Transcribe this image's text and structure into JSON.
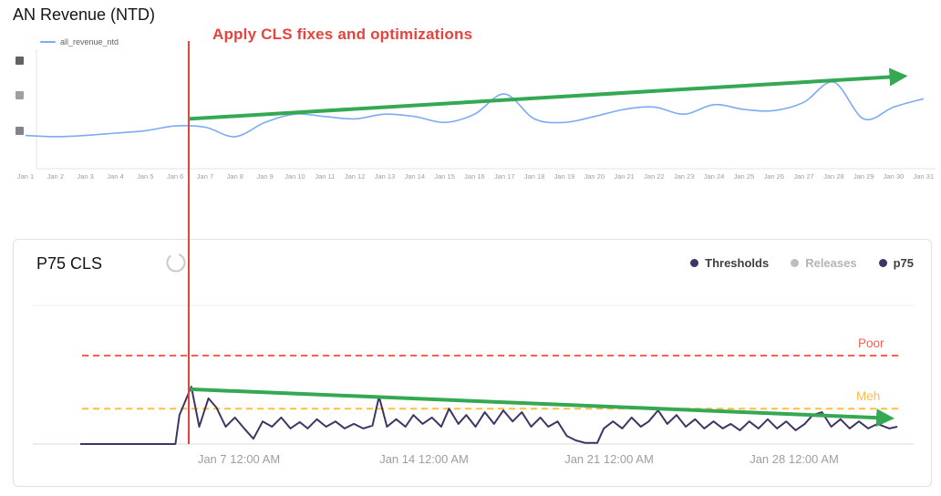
{
  "chart_data": [
    {
      "type": "line",
      "title": "AN Revenue (NTD)",
      "annotation": "Apply CLS fixes and optimizations",
      "x_tick_labels": [
        "Jan 1",
        "Jan 2",
        "Jan 3",
        "Jan 4",
        "Jan 5",
        "Jan 6",
        "Jan 7",
        "Jan 8",
        "Jan 9",
        "Jan 10",
        "Jan 11",
        "Jan 12",
        "Jan 13",
        "Jan 14",
        "Jan 15",
        "Jan 16",
        "Jan 17",
        "Jan 18",
        "Jan 19",
        "Jan 20",
        "Jan 21",
        "Jan 22",
        "Jan 23",
        "Jan 24",
        "Jan 25",
        "Jan 26",
        "Jan 27",
        "Jan 28",
        "Jan 29",
        "Jan 30",
        "Jan 31"
      ],
      "y_tick_labels_redacted": true,
      "ylim": [
        0,
        100
      ],
      "series": [
        {
          "name": "all_revenue_ntd",
          "color": "#7baaf7",
          "values": [
            28,
            27,
            28,
            30,
            32,
            36,
            35,
            27,
            39,
            46,
            44,
            42,
            46,
            44,
            39,
            46,
            63,
            42,
            39,
            44,
            50,
            52,
            46,
            54,
            50,
            49,
            56,
            73,
            42,
            52,
            59
          ]
        }
      ],
      "event_line": {
        "day": 6.45,
        "color": "#e2443c"
      },
      "trend_arrow": {
        "from": {
          "day": 6.45,
          "value": 42
        },
        "to": {
          "day": 30.3,
          "value": 78
        },
        "color": "#34a853"
      }
    },
    {
      "type": "line",
      "title": "P75 CLS",
      "legend": [
        {
          "label": "Thresholds",
          "color": "#3d3663",
          "disabled": false
        },
        {
          "label": "Releases",
          "color": "#bdbdbd",
          "disabled": true
        },
        {
          "label": "p75",
          "color": "#3d3663",
          "disabled": false
        }
      ],
      "thresholds": [
        {
          "label": "Poor",
          "value": 0.25,
          "color": "#f86055"
        },
        {
          "label": "Meh",
          "value": 0.1,
          "color": "#fdbd4a"
        }
      ],
      "x_tick_labels": [
        "Jan 7 12:00 AM",
        "Jan 14 12:00 AM",
        "Jan 21 12:00 AM",
        "Jan 28 12:00 AM"
      ],
      "ylim": [
        0,
        0.45
      ],
      "series": [
        {
          "name": "p75",
          "color": "#3d3663",
          "points": [
            [
              1,
              0
            ],
            [
              2,
              0
            ],
            [
              3,
              0
            ],
            [
              4,
              0
            ],
            [
              4.6,
              0
            ],
            [
              4.75,
              0.082
            ],
            [
              5.2,
              0.162
            ],
            [
              5.5,
              0.049
            ],
            [
              5.85,
              0.129
            ],
            [
              6.15,
              0.103
            ],
            [
              6.5,
              0.049
            ],
            [
              6.85,
              0.075
            ],
            [
              7.2,
              0.044
            ],
            [
              7.55,
              0.015
            ],
            [
              7.9,
              0.064
            ],
            [
              8.25,
              0.049
            ],
            [
              8.6,
              0.075
            ],
            [
              8.95,
              0.044
            ],
            [
              9.3,
              0.062
            ],
            [
              9.6,
              0.044
            ],
            [
              9.95,
              0.07
            ],
            [
              10.3,
              0.049
            ],
            [
              10.65,
              0.064
            ],
            [
              11,
              0.044
            ],
            [
              11.35,
              0.057
            ],
            [
              11.7,
              0.044
            ],
            [
              12.05,
              0.052
            ],
            [
              12.3,
              0.134
            ],
            [
              12.6,
              0.049
            ],
            [
              12.95,
              0.07
            ],
            [
              13.3,
              0.049
            ],
            [
              13.6,
              0.082
            ],
            [
              13.95,
              0.057
            ],
            [
              14.3,
              0.075
            ],
            [
              14.65,
              0.049
            ],
            [
              14.95,
              0.1
            ],
            [
              15.3,
              0.057
            ],
            [
              15.6,
              0.082
            ],
            [
              15.95,
              0.049
            ],
            [
              16.3,
              0.09
            ],
            [
              16.65,
              0.057
            ],
            [
              17,
              0.095
            ],
            [
              17.35,
              0.064
            ],
            [
              17.7,
              0.09
            ],
            [
              18.05,
              0.049
            ],
            [
              18.4,
              0.075
            ],
            [
              18.7,
              0.049
            ],
            [
              19.05,
              0.064
            ],
            [
              19.4,
              0.023
            ],
            [
              19.75,
              0.01
            ],
            [
              20.1,
              0.003
            ],
            [
              20.55,
              0.003
            ],
            [
              20.8,
              0.044
            ],
            [
              21.15,
              0.064
            ],
            [
              21.5,
              0.044
            ],
            [
              21.85,
              0.075
            ],
            [
              22.2,
              0.049
            ],
            [
              22.5,
              0.064
            ],
            [
              22.85,
              0.095
            ],
            [
              23.2,
              0.057
            ],
            [
              23.55,
              0.082
            ],
            [
              23.9,
              0.049
            ],
            [
              24.25,
              0.07
            ],
            [
              24.6,
              0.044
            ],
            [
              24.95,
              0.064
            ],
            [
              25.3,
              0.044
            ],
            [
              25.6,
              0.057
            ],
            [
              25.95,
              0.039
            ],
            [
              26.3,
              0.064
            ],
            [
              26.65,
              0.044
            ],
            [
              27,
              0.07
            ],
            [
              27.35,
              0.044
            ],
            [
              27.7,
              0.064
            ],
            [
              28.05,
              0.039
            ],
            [
              28.4,
              0.057
            ],
            [
              28.7,
              0.082
            ],
            [
              29.05,
              0.09
            ],
            [
              29.4,
              0.049
            ],
            [
              29.75,
              0.07
            ],
            [
              30.1,
              0.044
            ],
            [
              30.45,
              0.064
            ],
            [
              30.8,
              0.044
            ],
            [
              31.15,
              0.057
            ],
            [
              31.6,
              0.044
            ],
            [
              31.9,
              0.049
            ]
          ]
        }
      ],
      "trend_arrow": {
        "from": {
          "day": 5.15,
          "value": 0.155
        },
        "to": {
          "day": 31.6,
          "value": 0.073
        },
        "color": "#34a853"
      }
    }
  ]
}
